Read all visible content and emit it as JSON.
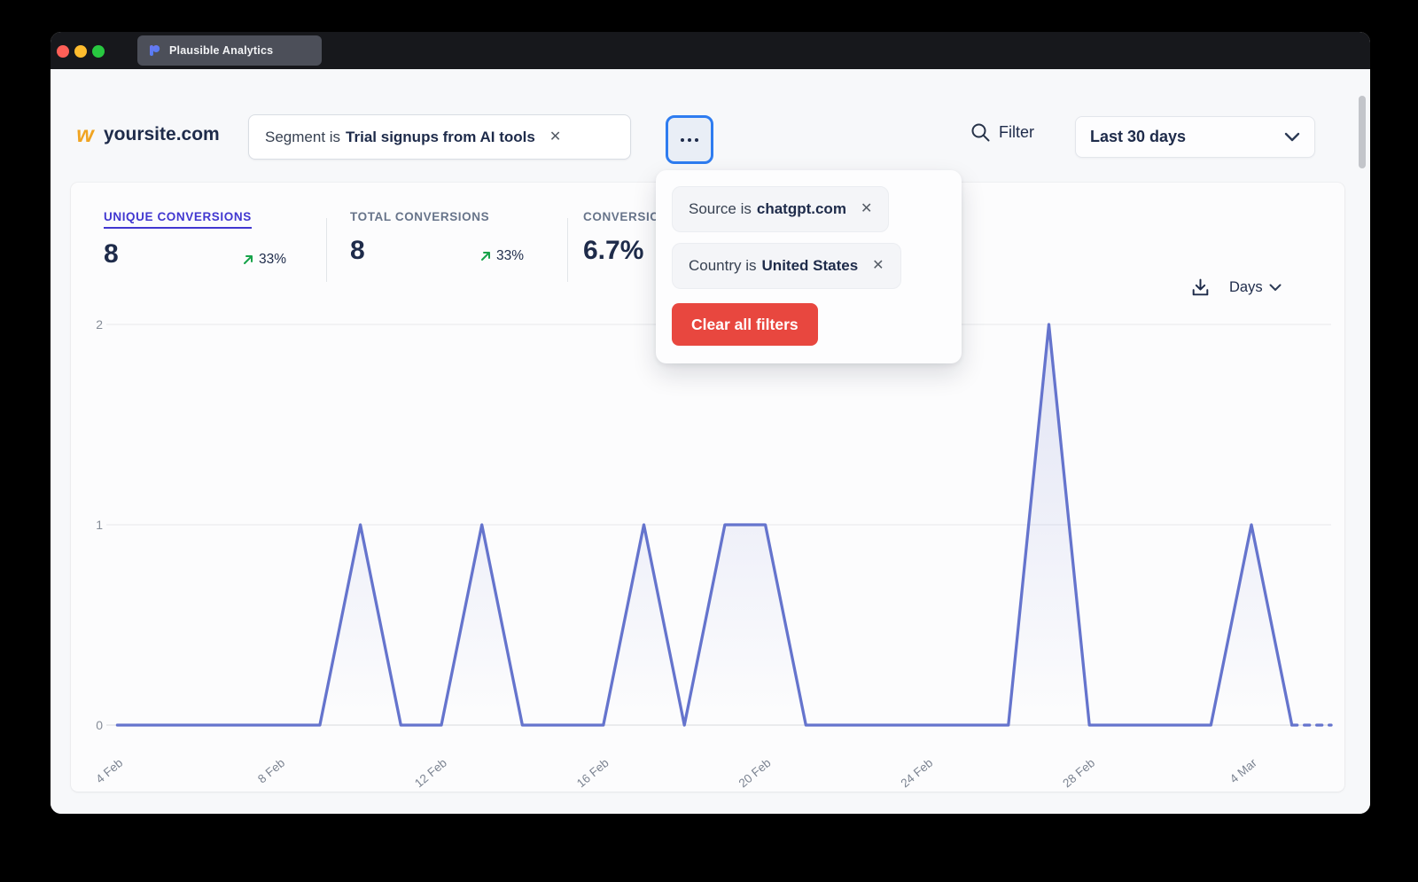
{
  "window": {
    "tab_title": "Plausible Analytics"
  },
  "header": {
    "site_favicon": "w",
    "site_name": "yoursite.com",
    "segment_filter": {
      "prefix": "Segment is",
      "value": "Trial signups from AI tools"
    },
    "filter_label": "Filter",
    "date_range": "Last 30 days"
  },
  "filters_popup": {
    "items": [
      {
        "prefix": "Source is",
        "value": "chatgpt.com"
      },
      {
        "prefix": "Country is",
        "value": "United States"
      }
    ],
    "clear_button": "Clear all filters"
  },
  "metrics": [
    {
      "label": "UNIQUE CONVERSIONS",
      "value": "8",
      "change": "33%",
      "direction": "up"
    },
    {
      "label": "TOTAL CONVERSIONS",
      "value": "8",
      "change": "33%",
      "direction": "up"
    },
    {
      "label": "CONVERSION RATE",
      "value": "6.7%"
    }
  ],
  "chart_controls": {
    "interval": "Days"
  },
  "icons": {
    "close": "✕"
  },
  "colors": {
    "accent_indigo": "#4137d0",
    "chart_line": "#6574cd",
    "positive_green": "#17a34a",
    "danger_red": "#e8473f",
    "focus_blue": "#2e7cf0",
    "text_dark": "#1e2b4a",
    "text_gray": "#67748a"
  },
  "chart_data": {
    "type": "line",
    "title": "",
    "xlabel": "",
    "ylabel": "",
    "x": [
      "4 Feb",
      "5 Feb",
      "6 Feb",
      "7 Feb",
      "8 Feb",
      "9 Feb",
      "10 Feb",
      "11 Feb",
      "12 Feb",
      "13 Feb",
      "14 Feb",
      "15 Feb",
      "16 Feb",
      "17 Feb",
      "18 Feb",
      "19 Feb",
      "20 Feb",
      "21 Feb",
      "22 Feb",
      "23 Feb",
      "24 Feb",
      "25 Feb",
      "26 Feb",
      "27 Feb",
      "28 Feb",
      "1 Mar",
      "2 Mar",
      "3 Mar",
      "4 Mar",
      "5 Mar"
    ],
    "values": [
      0,
      0,
      0,
      0,
      0,
      0,
      1,
      0,
      0,
      1,
      0,
      0,
      0,
      1,
      0,
      1,
      1,
      0,
      0,
      0,
      0,
      0,
      0,
      2,
      0,
      0,
      0,
      0,
      1,
      0
    ],
    "tick_indices": [
      0,
      4,
      8,
      12,
      16,
      20,
      24,
      28
    ],
    "tick_labels": [
      "4 Feb",
      "8 Feb",
      "12 Feb",
      "16 Feb",
      "20 Feb",
      "24 Feb",
      "28 Feb",
      "4 Mar"
    ],
    "yticks": [
      0,
      1,
      2
    ],
    "ylim": [
      0,
      2
    ],
    "grid": true,
    "legend": "none",
    "last_segment_dashed": true
  }
}
